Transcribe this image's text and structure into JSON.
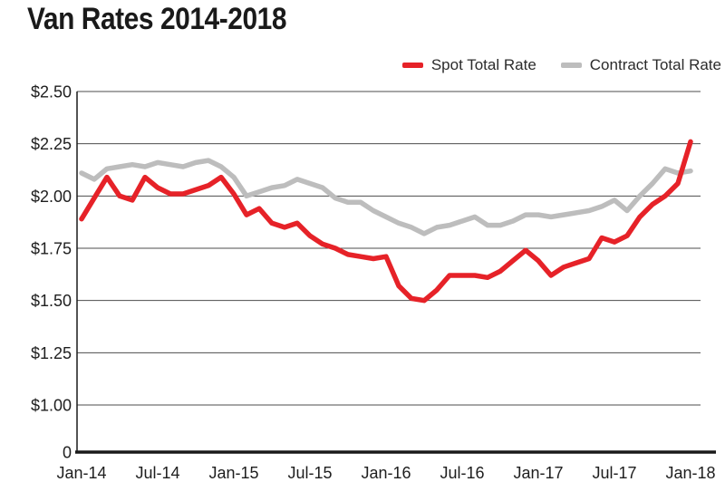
{
  "title": "Van Rates 2014-2018",
  "legend": {
    "items": [
      {
        "label": "Spot Total Rate",
        "color": "#e62228"
      },
      {
        "label": "Contract Total Rate",
        "color": "#bdbdbd"
      }
    ]
  },
  "colors": {
    "spot_line": "#e62228",
    "contract_line": "#bdbdbd",
    "gridline": "#4d4d4d",
    "axis": "#1a1a1a",
    "text": "#1e1e1e",
    "background": "#ffffff"
  },
  "chart_data": {
    "type": "line",
    "title": "Van Rates 2014-2018",
    "xlabel": "",
    "ylabel": "",
    "grid": "horizontal",
    "legend_position": "top-right",
    "y_axis": {
      "tick_labels": [
        "$2.50",
        "$2.25",
        "$2.00",
        "$1.75",
        "$1.50",
        "$1.25",
        "$1.00",
        "0"
      ],
      "tick_values": [
        2.5,
        2.25,
        2.0,
        1.75,
        1.5,
        1.25,
        1.0,
        0
      ],
      "note": "broken scale: single step from 0 to 1.00, then linear 1.00-2.50",
      "ylim_linear_part": [
        1.0,
        2.5
      ]
    },
    "x_tick_labels": [
      "Jan-14",
      "Jul-14",
      "Jan-15",
      "Jul-15",
      "Jan-16",
      "Jul-16",
      "Jan-17",
      "Jul-17",
      "Jan-18"
    ],
    "x": [
      "Jan-14",
      "Feb-14",
      "Mar-14",
      "Apr-14",
      "May-14",
      "Jun-14",
      "Jul-14",
      "Aug-14",
      "Sep-14",
      "Oct-14",
      "Nov-14",
      "Dec-14",
      "Jan-15",
      "Feb-15",
      "Mar-15",
      "Apr-15",
      "May-15",
      "Jun-15",
      "Jul-15",
      "Aug-15",
      "Sep-15",
      "Oct-15",
      "Nov-15",
      "Dec-15",
      "Jan-16",
      "Feb-16",
      "Mar-16",
      "Apr-16",
      "May-16",
      "Jun-16",
      "Jul-16",
      "Aug-16",
      "Sep-16",
      "Oct-16",
      "Nov-16",
      "Dec-16",
      "Jan-17",
      "Feb-17",
      "Mar-17",
      "Apr-17",
      "May-17",
      "Jun-17",
      "Jul-17",
      "Aug-17",
      "Sep-17",
      "Oct-17",
      "Nov-17",
      "Dec-17",
      "Jan-18"
    ],
    "series": [
      {
        "name": "Spot Total Rate",
        "color": "#e62228",
        "values": [
          1.89,
          1.99,
          2.09,
          2.0,
          1.98,
          2.09,
          2.04,
          2.01,
          2.01,
          2.03,
          2.05,
          2.09,
          2.01,
          1.91,
          1.94,
          1.87,
          1.85,
          1.87,
          1.81,
          1.77,
          1.75,
          1.72,
          1.71,
          1.7,
          1.71,
          1.57,
          1.51,
          1.5,
          1.55,
          1.62,
          1.62,
          1.62,
          1.61,
          1.64,
          1.69,
          1.74,
          1.69,
          1.62,
          1.66,
          1.68,
          1.7,
          1.8,
          1.78,
          1.81,
          1.9,
          1.96,
          2.0,
          2.06,
          2.26
        ]
      },
      {
        "name": "Contract Total Rate",
        "color": "#bdbdbd",
        "values": [
          2.11,
          2.08,
          2.13,
          2.14,
          2.15,
          2.14,
          2.16,
          2.15,
          2.14,
          2.16,
          2.17,
          2.14,
          2.09,
          2.0,
          2.02,
          2.04,
          2.05,
          2.08,
          2.06,
          2.04,
          1.99,
          1.97,
          1.97,
          1.93,
          1.9,
          1.87,
          1.85,
          1.82,
          1.85,
          1.86,
          1.88,
          1.9,
          1.86,
          1.86,
          1.88,
          1.91,
          1.91,
          1.9,
          1.91,
          1.92,
          1.93,
          1.95,
          1.98,
          1.93,
          2.0,
          2.06,
          2.13,
          2.11,
          2.12
        ]
      }
    ]
  }
}
